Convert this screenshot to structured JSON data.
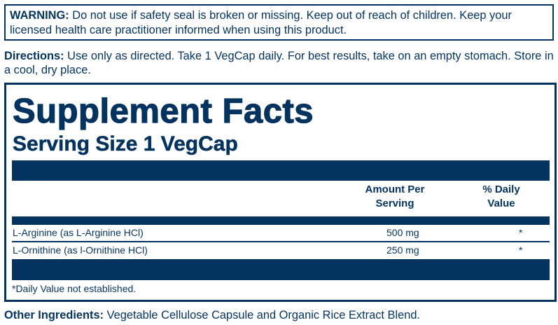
{
  "warning": {
    "label": "WARNING:",
    "text": " Do not use if safety seal is broken or missing. Keep out of reach of children. Keep your licensed health care practitioner informed when using this product."
  },
  "directions": {
    "label": "Directions:",
    "text": " Use only as directed. Take 1 VegCap daily. For best results, take on an empty stomach. Store in a cool, dry place."
  },
  "facts": {
    "title": "Supplement Facts",
    "serving_size": "Serving Size 1 VegCap",
    "header": {
      "amount_line1": "Amount Per",
      "amount_line2": "Serving",
      "dv_line1": "% Daily",
      "dv_line2": "Value"
    },
    "rows": [
      {
        "name": "L-Arginine (as L-Arginine HCl)",
        "amount": "500 mg",
        "dv": "*"
      },
      {
        "name": "L-Ornithine (as l-Ornithine HCl)",
        "amount": "250 mg",
        "dv": "*"
      }
    ],
    "footnote": "*Daily Value not established."
  },
  "other_ingredients": {
    "label": "Other Ingredients:",
    "text": " Vegetable Cellulose Capsule and Organic Rice Extract Blend."
  },
  "colors": {
    "label_blue": "#04335f"
  }
}
